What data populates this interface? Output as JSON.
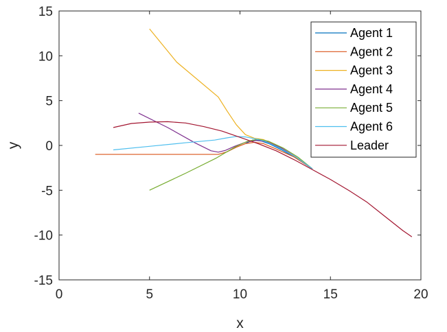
{
  "chart_data": {
    "type": "line",
    "xlabel": "x",
    "ylabel": "y",
    "xlim": [
      0,
      20
    ],
    "ylim": [
      -15,
      15
    ],
    "xticks": [
      "0",
      "5",
      "10",
      "15",
      "20"
    ],
    "yticks": [
      "15",
      "10",
      "5",
      "0",
      "-5",
      "-10",
      "-15"
    ],
    "grid": false,
    "legend_position": "top-right",
    "series": [
      {
        "name": "Agent 1",
        "color": "#0072BD",
        "points": [
          [
            10.3,
            0.2
          ],
          [
            10.7,
            0.6
          ],
          [
            11.1,
            0.55
          ],
          [
            11.6,
            0.2
          ],
          [
            12.3,
            -0.5
          ],
          [
            13.0,
            -1.3
          ],
          [
            14.0,
            -2.6
          ]
        ]
      },
      {
        "name": "Agent 2",
        "color": "#D95319",
        "points": [
          [
            2.0,
            -1.0
          ],
          [
            8.8,
            -1.0
          ],
          [
            9.3,
            -0.7
          ],
          [
            9.8,
            -0.2
          ],
          [
            10.3,
            0.2
          ],
          [
            10.8,
            0.35
          ],
          [
            11.3,
            0.2
          ],
          [
            12.0,
            -0.4
          ],
          [
            13.0,
            -1.3
          ],
          [
            14.0,
            -2.6
          ]
        ]
      },
      {
        "name": "Agent 3",
        "color": "#EDB120",
        "points": [
          [
            5.0,
            13.0
          ],
          [
            6.5,
            9.3
          ],
          [
            8.8,
            5.4
          ],
          [
            9.3,
            3.8
          ],
          [
            9.8,
            2.3
          ],
          [
            10.3,
            1.2
          ],
          [
            10.8,
            0.8
          ],
          [
            11.3,
            0.65
          ],
          [
            12.0,
            0.0
          ],
          [
            13.0,
            -1.2
          ],
          [
            14.0,
            -2.6
          ]
        ]
      },
      {
        "name": "Agent 4",
        "color": "#7E2F8E",
        "points": [
          [
            4.4,
            3.6
          ],
          [
            6.0,
            2.0
          ],
          [
            7.5,
            0.3
          ],
          [
            8.4,
            -0.6
          ],
          [
            8.8,
            -0.75
          ],
          [
            9.2,
            -0.55
          ],
          [
            9.7,
            -0.1
          ],
          [
            10.3,
            0.35
          ],
          [
            10.9,
            0.55
          ],
          [
            11.5,
            0.4
          ],
          [
            12.3,
            -0.3
          ],
          [
            13.1,
            -1.3
          ],
          [
            14.0,
            -2.6
          ]
        ]
      },
      {
        "name": "Agent 5",
        "color": "#77AC30",
        "points": [
          [
            5.0,
            -5.0
          ],
          [
            7.0,
            -3.1
          ],
          [
            8.7,
            -1.4
          ],
          [
            9.2,
            -0.8
          ],
          [
            9.8,
            -0.1
          ],
          [
            10.4,
            0.45
          ],
          [
            11.0,
            0.7
          ],
          [
            11.6,
            0.45
          ],
          [
            12.4,
            -0.3
          ],
          [
            13.2,
            -1.3
          ],
          [
            14.0,
            -2.6
          ]
        ]
      },
      {
        "name": "Agent 6",
        "color": "#4DBEEE",
        "points": [
          [
            3.0,
            -0.5
          ],
          [
            5.0,
            -0.1
          ],
          [
            7.0,
            0.3
          ],
          [
            8.6,
            0.6
          ],
          [
            9.3,
            0.85
          ],
          [
            9.8,
            1.0
          ],
          [
            10.3,
            0.95
          ],
          [
            10.8,
            0.75
          ],
          [
            11.4,
            0.45
          ],
          [
            12.2,
            -0.3
          ],
          [
            13.1,
            -1.3
          ],
          [
            14.0,
            -2.6
          ]
        ]
      },
      {
        "name": "Leader",
        "color": "#A2142F",
        "points": [
          [
            3.0,
            2.0
          ],
          [
            4.0,
            2.45
          ],
          [
            5.0,
            2.6
          ],
          [
            6.0,
            2.65
          ],
          [
            7.0,
            2.5
          ],
          [
            8.0,
            2.1
          ],
          [
            9.0,
            1.6
          ],
          [
            10.0,
            0.9
          ],
          [
            11.0,
            0.2
          ],
          [
            12.0,
            -0.6
          ],
          [
            13.0,
            -1.6
          ],
          [
            14.0,
            -2.7
          ],
          [
            15.0,
            -3.8
          ],
          [
            16.0,
            -5.0
          ],
          [
            17.0,
            -6.3
          ],
          [
            18.0,
            -7.9
          ],
          [
            19.0,
            -9.5
          ],
          [
            19.5,
            -10.2
          ]
        ]
      }
    ]
  }
}
